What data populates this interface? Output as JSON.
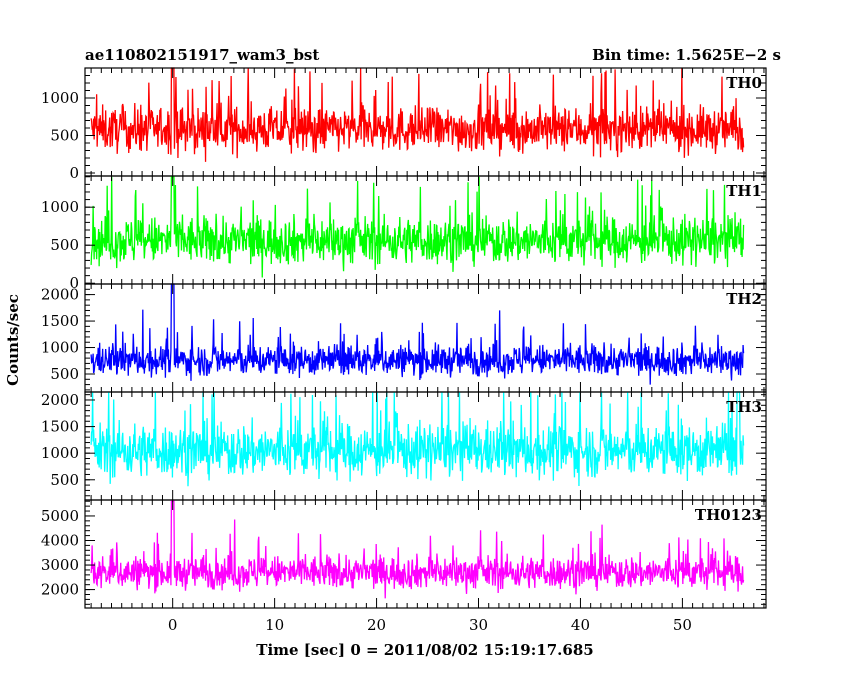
{
  "chart_data": {
    "type": "line",
    "title": "ae110802151917_wam3_bst",
    "bin_time_label": "Bin time: 1.5625E−2 s",
    "xlabel": "Time [sec] 0 = 2011/08/02 15:19:17.685",
    "ylabel": "Counts/sec",
    "xlim": [
      -8.6,
      58.2
    ],
    "x_ticks": [
      0,
      10,
      20,
      30,
      40,
      50
    ],
    "x_range_data": [
      -8,
      56
    ],
    "panels": [
      {
        "name": "TH0",
        "color": "#ff0000",
        "ylim": [
          -40,
          1400
        ],
        "yticks": [
          0,
          500,
          1000
        ],
        "ytick_labels": [
          "0",
          "500",
          "1000"
        ],
        "mean": 580,
        "spread": 210,
        "min_clip": 80,
        "max_clip": 1400,
        "spike_x": 0,
        "spike_value": 1400
      },
      {
        "name": "TH1",
        "color": "#00ff00",
        "ylim": [
          -10,
          1410
        ],
        "yticks": [
          0,
          500,
          1000
        ],
        "ytick_labels": [
          "0",
          "500",
          "1000"
        ],
        "mean": 560,
        "spread": 220,
        "min_clip": 30,
        "max_clip": 1400,
        "spike_x": 0,
        "spike_value": 1400
      },
      {
        "name": "TH2",
        "color": "#0000ff",
        "ylim": [
          160,
          2200
        ],
        "yticks": [
          500,
          1000,
          1500,
          2000
        ],
        "ytick_labels": [
          "500",
          "1000",
          "1500",
          "2000"
        ],
        "mean": 760,
        "spread": 210,
        "min_clip": 300,
        "max_clip": 2200,
        "spike_x": 0,
        "spike_value": 2200
      },
      {
        "name": "TH3",
        "color": "#00ffff",
        "ylim": [
          120,
          2150
        ],
        "yticks": [
          500,
          1000,
          1500,
          2000
        ],
        "ytick_labels": [
          "500",
          "1000",
          "1500",
          "2000"
        ],
        "mean": 1050,
        "spread": 360,
        "min_clip": 250,
        "max_clip": 2150,
        "spike_x": 55.5,
        "spike_value": 2150
      },
      {
        "name": "TH0123",
        "color": "#ff00ff",
        "ylim": [
          1250,
          5650
        ],
        "yticks": [
          2000,
          3000,
          4000,
          5000
        ],
        "ytick_labels": [
          "2000",
          "3000",
          "4000",
          "5000"
        ],
        "mean": 2700,
        "spread": 480,
        "min_clip": 1350,
        "max_clip": 5650,
        "spike_x": 0,
        "spike_value": 5600
      }
    ]
  }
}
